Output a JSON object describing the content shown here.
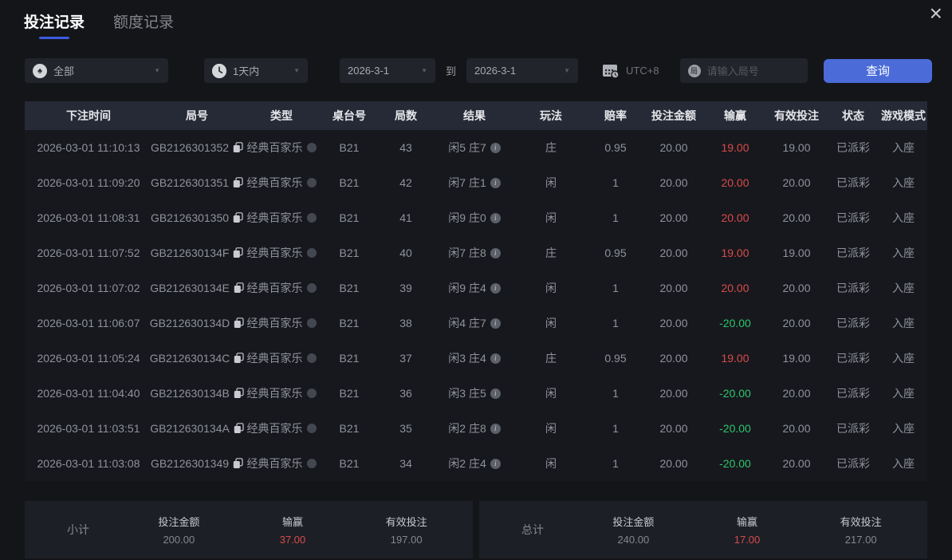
{
  "window": {
    "close_glyph": "×"
  },
  "tabs": [
    {
      "label": "投注记录",
      "active": true
    },
    {
      "label": "额度记录",
      "active": false
    }
  ],
  "filters": {
    "game_type": {
      "value": "全部",
      "icon": "spade"
    },
    "time_range": {
      "value": "1天内",
      "icon": "clock"
    },
    "date_from": "2026-3-1",
    "to_label": "到",
    "date_to": "2026-3-1",
    "timezone_label": "UTC+8",
    "round_input": {
      "value": "",
      "placeholder": "请输入局号",
      "icon_char": "局"
    },
    "query_button": "查询"
  },
  "table": {
    "headers": [
      "下注时间",
      "局号",
      "类型",
      "桌台号",
      "局数",
      "结果",
      "玩法",
      "赔率",
      "投注金额",
      "输赢",
      "有效投注",
      "状态",
      "游戏模式"
    ],
    "rows": [
      {
        "time": "2026-03-01 11:10:13",
        "round_id": "GB2126301352",
        "type": "经典百家乐",
        "table_no": "B21",
        "round_no": "43",
        "result": "闲5 庄7",
        "play": "庄",
        "odds": "0.95",
        "bet": "20.00",
        "win": "19.00",
        "win_color": "red",
        "valid": "19.00",
        "status": "已派彩",
        "mode": "入座"
      },
      {
        "time": "2026-03-01 11:09:20",
        "round_id": "GB2126301351",
        "type": "经典百家乐",
        "table_no": "B21",
        "round_no": "42",
        "result": "闲7 庄1",
        "play": "闲",
        "odds": "1",
        "bet": "20.00",
        "win": "20.00",
        "win_color": "red",
        "valid": "20.00",
        "status": "已派彩",
        "mode": "入座"
      },
      {
        "time": "2026-03-01 11:08:31",
        "round_id": "GB2126301350",
        "type": "经典百家乐",
        "table_no": "B21",
        "round_no": "41",
        "result": "闲9 庄0",
        "play": "闲",
        "odds": "1",
        "bet": "20.00",
        "win": "20.00",
        "win_color": "red",
        "valid": "20.00",
        "status": "已派彩",
        "mode": "入座"
      },
      {
        "time": "2026-03-01 11:07:52",
        "round_id": "GB212630134F",
        "type": "经典百家乐",
        "table_no": "B21",
        "round_no": "40",
        "result": "闲7 庄8",
        "play": "庄",
        "odds": "0.95",
        "bet": "20.00",
        "win": "19.00",
        "win_color": "red",
        "valid": "19.00",
        "status": "已派彩",
        "mode": "入座"
      },
      {
        "time": "2026-03-01 11:07:02",
        "round_id": "GB212630134E",
        "type": "经典百家乐",
        "table_no": "B21",
        "round_no": "39",
        "result": "闲9 庄4",
        "play": "闲",
        "odds": "1",
        "bet": "20.00",
        "win": "20.00",
        "win_color": "red",
        "valid": "20.00",
        "status": "已派彩",
        "mode": "入座"
      },
      {
        "time": "2026-03-01 11:06:07",
        "round_id": "GB212630134D",
        "type": "经典百家乐",
        "table_no": "B21",
        "round_no": "38",
        "result": "闲4 庄7",
        "play": "闲",
        "odds": "1",
        "bet": "20.00",
        "win": "-20.00",
        "win_color": "green",
        "valid": "20.00",
        "status": "已派彩",
        "mode": "入座"
      },
      {
        "time": "2026-03-01 11:05:24",
        "round_id": "GB212630134C",
        "type": "经典百家乐",
        "table_no": "B21",
        "round_no": "37",
        "result": "闲3 庄4",
        "play": "庄",
        "odds": "0.95",
        "bet": "20.00",
        "win": "19.00",
        "win_color": "red",
        "valid": "19.00",
        "status": "已派彩",
        "mode": "入座"
      },
      {
        "time": "2026-03-01 11:04:40",
        "round_id": "GB212630134B",
        "type": "经典百家乐",
        "table_no": "B21",
        "round_no": "36",
        "result": "闲3 庄5",
        "play": "闲",
        "odds": "1",
        "bet": "20.00",
        "win": "-20.00",
        "win_color": "green",
        "valid": "20.00",
        "status": "已派彩",
        "mode": "入座"
      },
      {
        "time": "2026-03-01 11:03:51",
        "round_id": "GB212630134A",
        "type": "经典百家乐",
        "table_no": "B21",
        "round_no": "35",
        "result": "闲2 庄8",
        "play": "闲",
        "odds": "1",
        "bet": "20.00",
        "win": "-20.00",
        "win_color": "green",
        "valid": "20.00",
        "status": "已派彩",
        "mode": "入座"
      },
      {
        "time": "2026-03-01 11:03:08",
        "round_id": "GB2126301349",
        "type": "经典百家乐",
        "table_no": "B21",
        "round_no": "34",
        "result": "闲2 庄4",
        "play": "闲",
        "odds": "1",
        "bet": "20.00",
        "win": "-20.00",
        "win_color": "green",
        "valid": "20.00",
        "status": "已派彩",
        "mode": "入座"
      }
    ]
  },
  "summary": {
    "subtotal": {
      "label": "小计",
      "bet_label": "投注金额",
      "bet": "200.00",
      "win_label": "输赢",
      "win": "37.00",
      "valid_label": "有效投注",
      "valid": "197.00"
    },
    "total": {
      "label": "总计",
      "bet_label": "投注金额",
      "bet": "240.00",
      "win_label": "输赢",
      "win": "17.00",
      "valid_label": "有效投注",
      "valid": "217.00"
    }
  },
  "colors": {
    "accent": "#4a6bd8",
    "red": "#d84b4b",
    "green": "#2bc56d"
  }
}
